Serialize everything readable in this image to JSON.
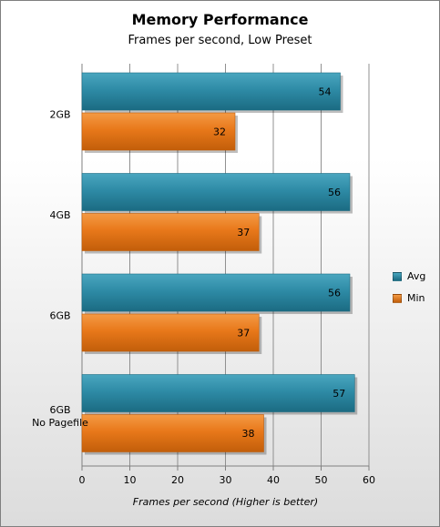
{
  "chart_data": {
    "type": "bar",
    "orientation": "horizontal",
    "title": "Memory Performance",
    "subtitle": "Frames per second, Low Preset",
    "xlabel": "Frames per second  (Higher is better)",
    "ylabel": "",
    "categories": [
      "2GB",
      "4GB",
      "6GB",
      "6GB\nNo Pagefile"
    ],
    "series": [
      {
        "name": "Avg",
        "values": [
          54,
          56,
          56,
          57
        ],
        "color": "#2e8ba6"
      },
      {
        "name": "Min",
        "values": [
          32,
          37,
          37,
          38
        ],
        "color": "#e8781a"
      }
    ],
    "xlim": [
      0,
      60
    ],
    "xticks": [
      0,
      10,
      20,
      30,
      40,
      50,
      60
    ],
    "grid": true,
    "legend_position": "right",
    "data_labels": true
  }
}
